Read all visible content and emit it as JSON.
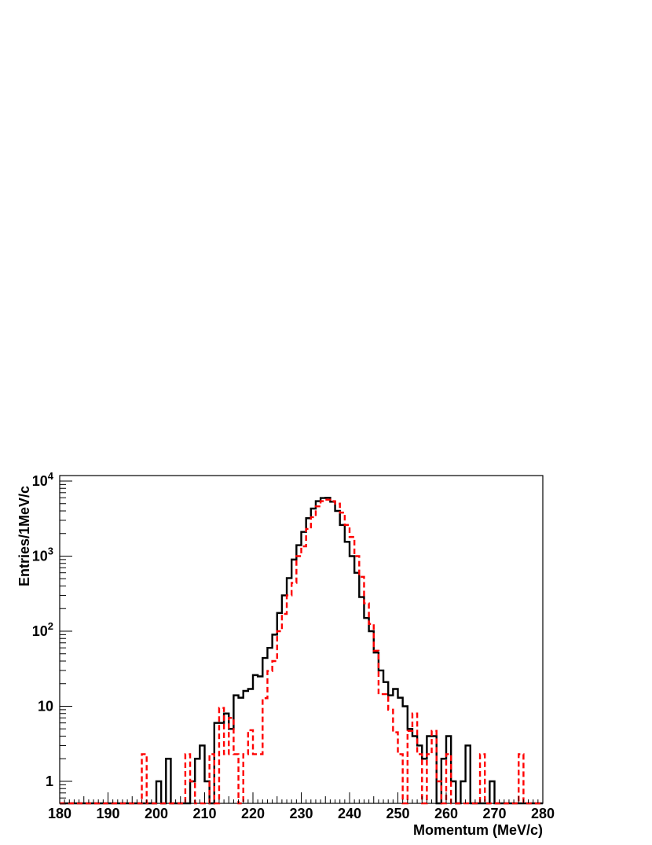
{
  "chart_data": {
    "type": "line",
    "title": "",
    "xlabel": "Momentum (MeV/c)",
    "ylabel": "Entries/1MeV/c",
    "xlim": [
      180,
      280
    ],
    "ylim": [
      0.5,
      11000
    ],
    "yscale": "log",
    "grid": false,
    "x_ticks": [
      180,
      190,
      200,
      210,
      220,
      230,
      240,
      250,
      260,
      270,
      280
    ],
    "x_tick_labels": [
      "180",
      "190",
      "200",
      "210",
      "220",
      "230",
      "240",
      "250",
      "260",
      "270",
      "280"
    ],
    "y_ticks": [
      1,
      10,
      100,
      1000,
      10000
    ],
    "y_tick_labels": [
      {
        "base": "1",
        "exp": ""
      },
      {
        "base": "10",
        "exp": ""
      },
      {
        "base": "10",
        "exp": "2"
      },
      {
        "base": "10",
        "exp": "3"
      },
      {
        "base": "10",
        "exp": "4"
      }
    ],
    "bin_width": 1,
    "bin_start": 180,
    "series": [
      {
        "color": "#000000",
        "style": "solid",
        "values": [
          0,
          0,
          0,
          0,
          0,
          0,
          0,
          0,
          0,
          0,
          0,
          0,
          0,
          0,
          0,
          0,
          0,
          0,
          0,
          0,
          1,
          0,
          2,
          0,
          0,
          0,
          0,
          1,
          2,
          3,
          1,
          0,
          6,
          6,
          8,
          5,
          14,
          13,
          16,
          17,
          26,
          25,
          44,
          60,
          90,
          175,
          300,
          510,
          900,
          1400,
          2100,
          3200,
          4300,
          5400,
          5950,
          6000,
          5300,
          4000,
          2600,
          1550,
          1000,
          600,
          285,
          150,
          100,
          52,
          30,
          21,
          14,
          17,
          13,
          10,
          5,
          4,
          3,
          2,
          4,
          4,
          0,
          2,
          4,
          1,
          0,
          1,
          3,
          0,
          0,
          0,
          0,
          1,
          0,
          0,
          0,
          0,
          0,
          0,
          0,
          0,
          0,
          0
        ]
      },
      {
        "color": "#ff0000",
        "style": "dashed",
        "values": [
          0,
          0,
          0,
          0,
          0,
          0,
          0,
          0,
          0,
          0,
          0,
          0,
          0,
          0,
          0,
          0,
          0,
          2.3,
          0,
          0,
          0,
          0,
          0,
          0,
          0,
          0,
          2.3,
          1,
          0,
          0,
          0,
          2.3,
          0,
          9.5,
          2.3,
          7,
          2.3,
          0,
          2.3,
          4.8,
          2.3,
          2.3,
          12.8,
          29.5,
          40,
          100,
          170,
          300,
          440,
          1000,
          1350,
          2300,
          3300,
          4600,
          5400,
          5650,
          5400,
          5000,
          3800,
          2600,
          1800,
          1000,
          530,
          235,
          125,
          55,
          14.5,
          14.5,
          9,
          4.5,
          2.3,
          0,
          4.7,
          8,
          2.3,
          0,
          2.3,
          4.7,
          1,
          0,
          2.3,
          0,
          0,
          0,
          0,
          0,
          0,
          2.3,
          0,
          0,
          0,
          0,
          0,
          0,
          0,
          2.3,
          0,
          0,
          0,
          0
        ]
      }
    ]
  }
}
